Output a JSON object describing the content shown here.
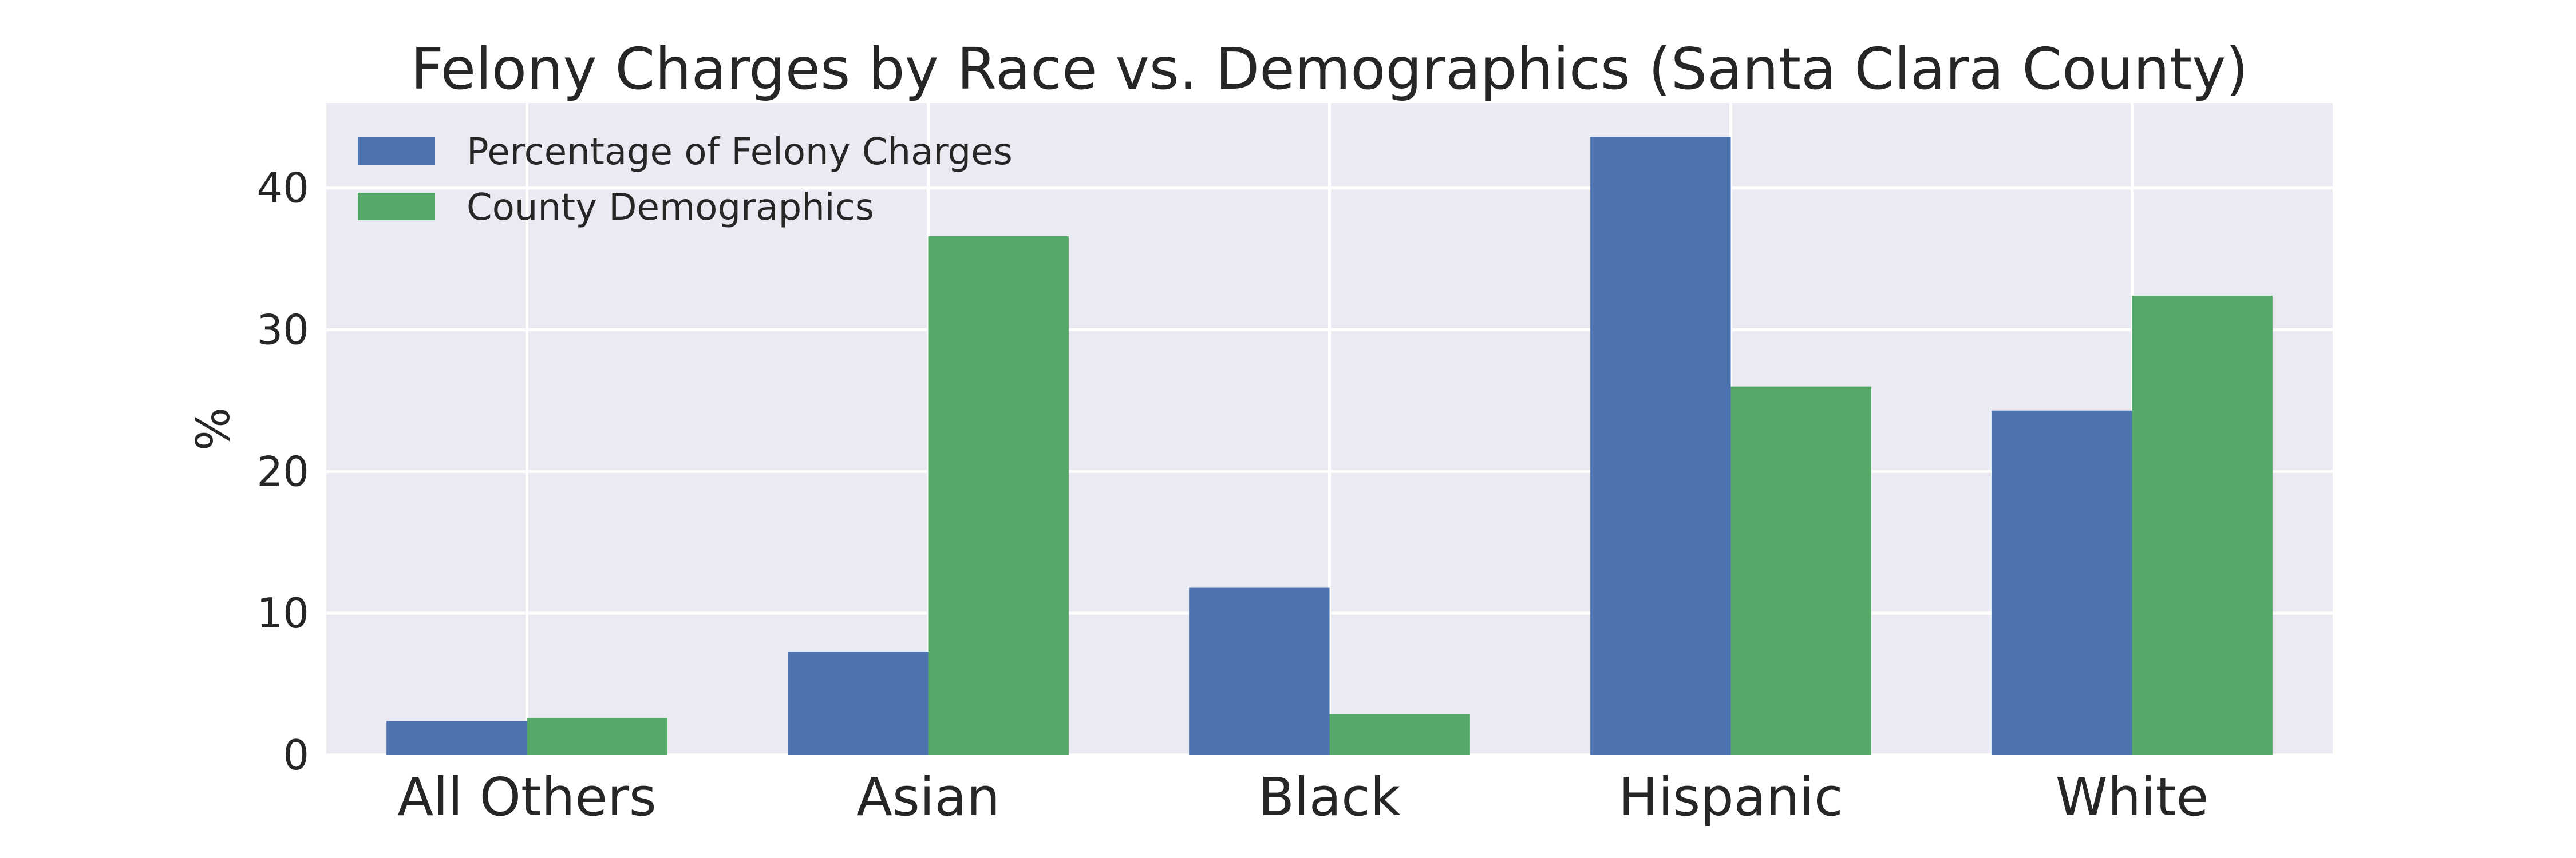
{
  "chart_data": {
    "type": "bar",
    "title": "Felony Charges by Race vs. Demographics (Santa Clara County)",
    "xlabel": "",
    "ylabel": "%",
    "categories": [
      "All Others",
      "Asian",
      "Black",
      "Hispanic",
      "White"
    ],
    "series": [
      {
        "name": "Percentage of Felony Charges",
        "color": "#4C72B0",
        "values": [
          2.4,
          7.3,
          11.8,
          43.6,
          24.3
        ]
      },
      {
        "name": "County Demographics",
        "color": "#55A868",
        "values": [
          2.6,
          36.6,
          2.9,
          26.0,
          32.4
        ]
      }
    ],
    "ylim": [
      0,
      46
    ],
    "yticks": [
      0,
      10,
      20,
      30,
      40
    ],
    "grid": true,
    "legend_position": "top-left",
    "background": "#EAEAF2",
    "grid_color": "#FFFFFF"
  }
}
